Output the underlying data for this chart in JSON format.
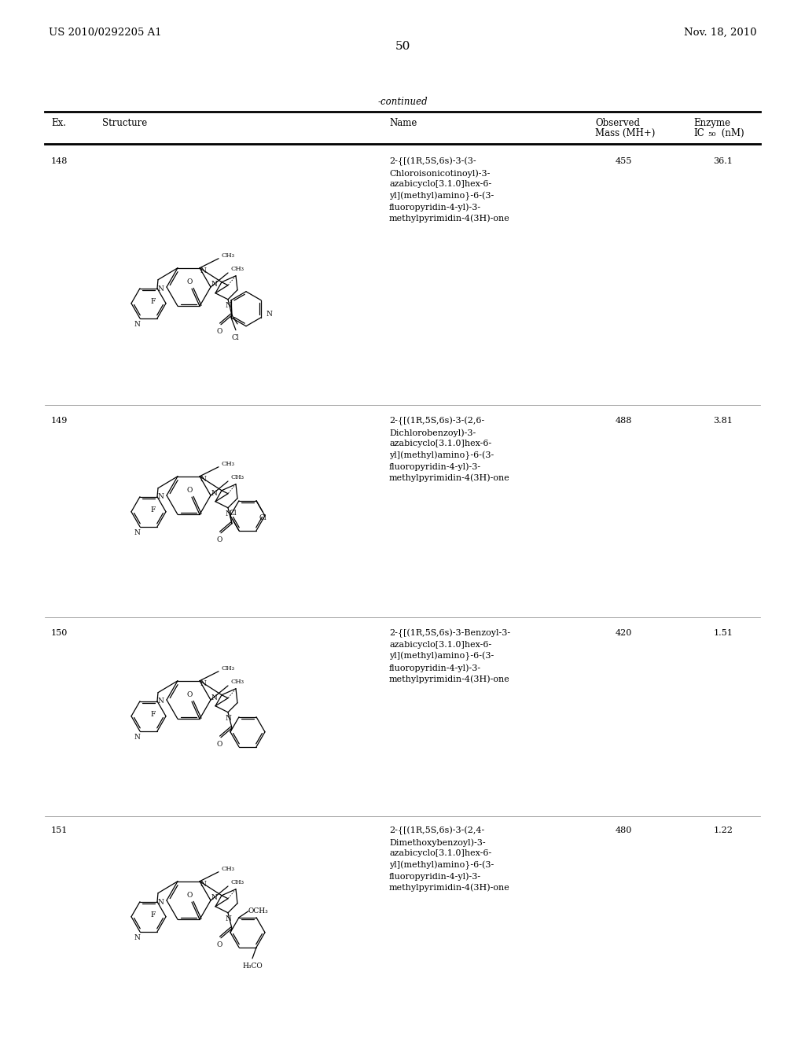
{
  "page_number": "50",
  "patent_number": "US 2010/0292205 A1",
  "patent_date": "Nov. 18, 2010",
  "continued_label": "-continued",
  "col1": "Ex.",
  "col2": "Structure",
  "col3": "Name",
  "col4_line1": "Observed",
  "col4_line2": "Mass (MH+)",
  "col5_line1": "Enzyme",
  "col5_line2": "IC",
  "col5_sub": "50",
  "col5_unit": " (nM)",
  "rows": [
    {
      "ex": "148",
      "name": "2-{[(1R,5S,6s)-3-(3-\nChloroisonicotinoyl)-3-\nazabicyclo[3.1.0]hex-6-\nyl](methyl)amino}-6-(3-\nfluoropyridin-4-yl)-3-\nmethylpyrimidin-4(3H)-one",
      "mass": "455",
      "ic50": "36.1"
    },
    {
      "ex": "149",
      "name": "2-{[(1R,5S,6s)-3-(2,6-\nDichlorobenzoyl)-3-\nazabicyclo[3.1.0]hex-6-\nyl](methyl)amino}-6-(3-\nfluoropyridin-4-yl)-3-\nmethylpyrimidin-4(3H)-one",
      "mass": "488",
      "ic50": "3.81"
    },
    {
      "ex": "150",
      "name": "2-{[(1R,5S,6s)-3-Benzoyl-3-\nazabicyclo[3.1.0]hex-6-\nyl](methyl)amino}-6-(3-\nfluoropyridin-4-yl)-3-\nmethylpyrimidin-4(3H)-one",
      "mass": "420",
      "ic50": "1.51"
    },
    {
      "ex": "151",
      "name": "2-{[(1R,5S,6s)-3-(2,4-\nDimethoxybenzoyl)-3-\nazabicyclo[3.1.0]hex-6-\nyl](methyl)amino}-6-(3-\nfluoropyridin-4-yl)-3-\nmethylpyrimidin-4(3H)-one",
      "mass": "480",
      "ic50": "1.22"
    }
  ],
  "bg_color": "#ffffff",
  "text_color": "#000000",
  "lw": 0.9,
  "fs_small": 6.5,
  "fs_label": 7.5,
  "fs_body": 8.0,
  "fs_header": 8.5,
  "fs_page": 11.0,
  "fs_patent": 9.5
}
